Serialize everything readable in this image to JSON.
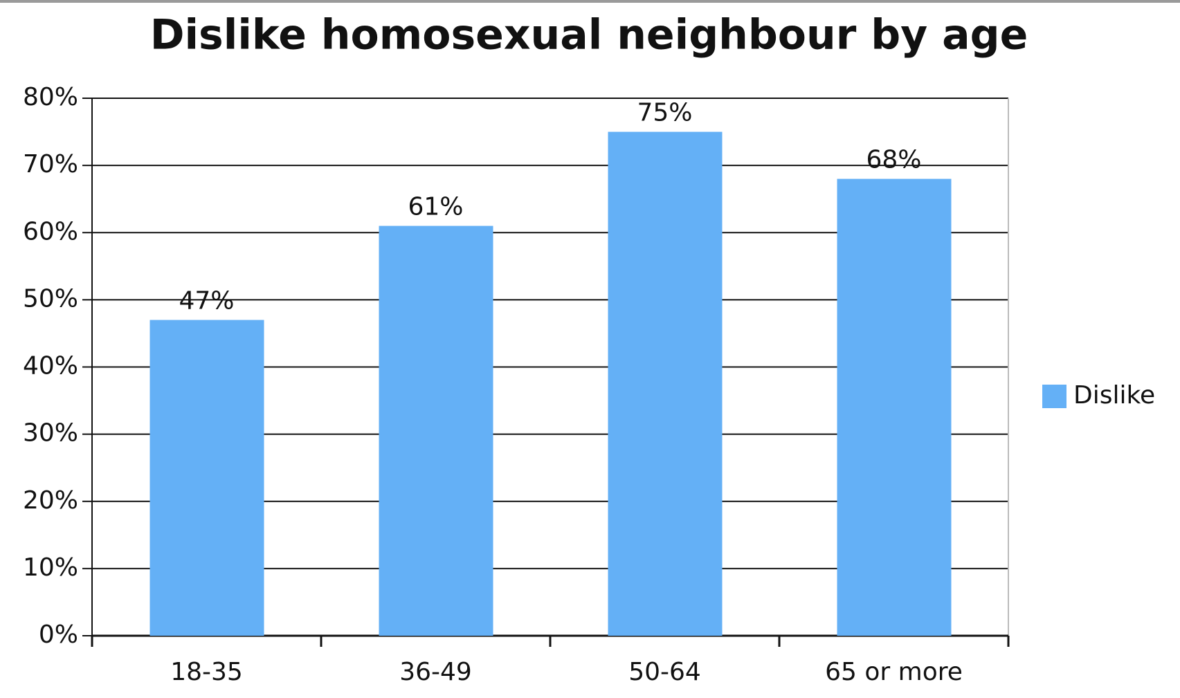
{
  "chart_data": {
    "type": "bar",
    "title": "Dislike homosexual neighbour by age",
    "categories": [
      "18-35",
      "36-49",
      "50-64",
      "65 or more"
    ],
    "series": [
      {
        "name": "Dislike",
        "color": "#64b0f6",
        "values": [
          47,
          61,
          75,
          68
        ],
        "value_labels": [
          "47%",
          "61%",
          "75%",
          "68%"
        ]
      }
    ],
    "ylim": [
      0,
      80
    ],
    "yticks": [
      {
        "value": 0,
        "label": "0%"
      },
      {
        "value": 10,
        "label": "10%"
      },
      {
        "value": 20,
        "label": "20%"
      },
      {
        "value": 30,
        "label": "30%"
      },
      {
        "value": 40,
        "label": "40%"
      },
      {
        "value": 50,
        "label": "50%"
      },
      {
        "value": 60,
        "label": "60%"
      },
      {
        "value": 70,
        "label": "70%"
      },
      {
        "value": 80,
        "label": "80%"
      }
    ],
    "grid": true,
    "legend": "right"
  }
}
